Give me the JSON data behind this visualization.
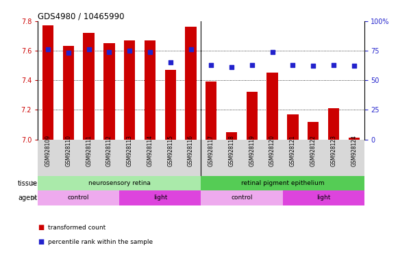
{
  "title": "GDS4980 / 10465990",
  "samples": [
    "GSM928109",
    "GSM928110",
    "GSM928111",
    "GSM928112",
    "GSM928113",
    "GSM928114",
    "GSM928115",
    "GSM928116",
    "GSM928117",
    "GSM928118",
    "GSM928119",
    "GSM928120",
    "GSM928121",
    "GSM928122",
    "GSM928123",
    "GSM928124"
  ],
  "bar_values": [
    7.77,
    7.63,
    7.72,
    7.65,
    7.67,
    7.67,
    7.47,
    7.76,
    7.39,
    7.05,
    7.32,
    7.45,
    7.17,
    7.12,
    7.21,
    7.01
  ],
  "percentile_values": [
    76,
    73,
    76,
    74,
    75,
    74,
    65,
    76,
    63,
    61,
    63,
    74,
    63,
    62,
    63,
    62
  ],
  "ylim_left": [
    7.0,
    7.8
  ],
  "ylim_right": [
    0,
    100
  ],
  "yticks_left": [
    7.0,
    7.2,
    7.4,
    7.6,
    7.8
  ],
  "yticks_right": [
    0,
    25,
    50,
    75,
    100
  ],
  "bar_color": "#cc0000",
  "dot_color": "#2222cc",
  "tissue_groups": [
    {
      "label": "neurosensory retina",
      "start": 0,
      "end": 8,
      "color": "#aaeaaa"
    },
    {
      "label": "retinal pigment epithelium",
      "start": 8,
      "end": 16,
      "color": "#55cc55"
    }
  ],
  "agent_groups": [
    {
      "label": "control",
      "start": 0,
      "end": 4,
      "color": "#eeaaee"
    },
    {
      "label": "light",
      "start": 4,
      "end": 8,
      "color": "#dd44dd"
    },
    {
      "label": "control",
      "start": 8,
      "end": 12,
      "color": "#eeaaee"
    },
    {
      "label": "light",
      "start": 12,
      "end": 16,
      "color": "#dd44dd"
    }
  ],
  "axis_color_left": "#cc0000",
  "axis_color_right": "#2222cc",
  "legend_items": [
    {
      "label": "transformed count",
      "color": "#cc0000"
    },
    {
      "label": "percentile rank within the sample",
      "color": "#2222cc"
    }
  ],
  "label_row_bg": "#d8d8d8",
  "plot_bg": "#ffffff"
}
